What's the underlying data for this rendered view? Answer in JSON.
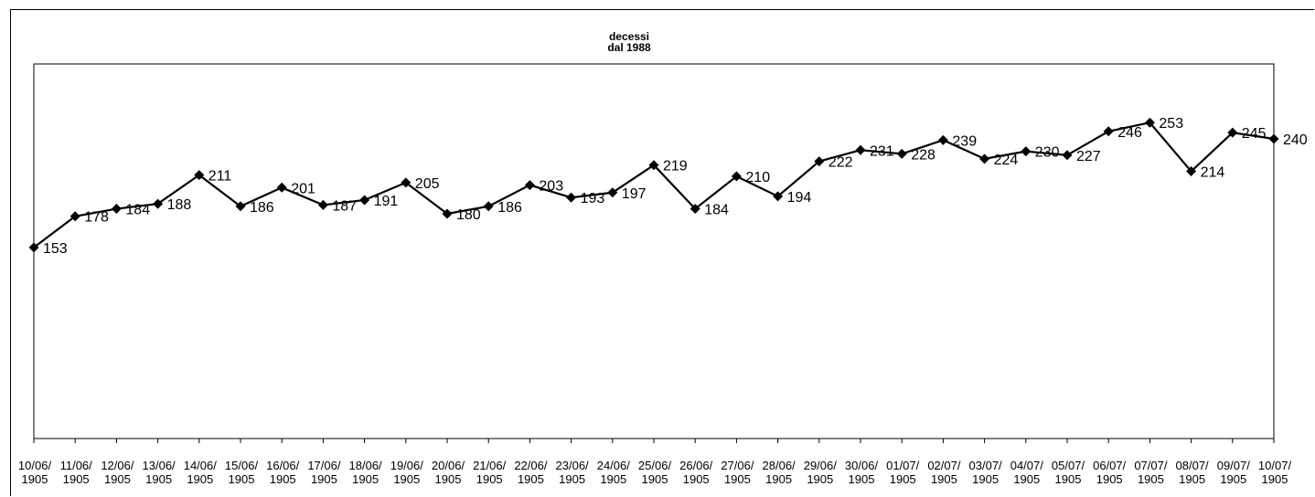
{
  "chart_data": {
    "type": "line",
    "title": "decessi\ndal 1988",
    "xlabel": "",
    "ylabel": "",
    "ylim": [
      0,
      300
    ],
    "grid": false,
    "legend": "none",
    "marker": "diamond",
    "line_color": "#000000",
    "categories": [
      "10/06/\n1905",
      "11/06/\n1905",
      "12/06/\n1905",
      "13/06/\n1905",
      "14/06/\n1905",
      "15/06/\n1905",
      "16/06/\n1905",
      "17/06/\n1905",
      "18/06/\n1905",
      "19/06/\n1905",
      "20/06/\n1905",
      "21/06/\n1905",
      "22/06/\n1905",
      "23/06/\n1905",
      "24/06/\n1905",
      "25/06/\n1905",
      "26/06/\n1905",
      "27/06/\n1905",
      "28/06/\n1905",
      "29/06/\n1905",
      "30/06/\n1905",
      "01/07/\n1905",
      "02/07/\n1905",
      "03/07/\n1905",
      "04/07/\n1905",
      "05/07/\n1905",
      "06/07/\n1905",
      "07/07/\n1905",
      "08/07/\n1905",
      "09/07/\n1905",
      "10/07/\n1905"
    ],
    "series": [
      {
        "values": [
          153,
          178,
          184,
          188,
          211,
          186,
          201,
          187,
          191,
          205,
          180,
          186,
          203,
          193,
          197,
          219,
          184,
          210,
          194,
          222,
          231,
          228,
          239,
          224,
          230,
          227,
          246,
          253,
          214,
          245,
          240
        ]
      }
    ]
  }
}
